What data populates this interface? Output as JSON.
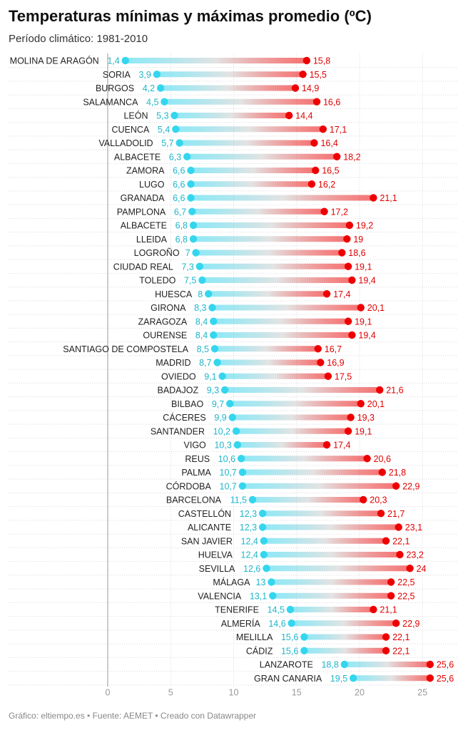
{
  "title": "Temperaturas mínimas y máximas promedio (ºC)",
  "subtitle": "Período climático: 1981-2010",
  "footer": "Gráfico: eltiempo.es • Fuente: AEMET • Creado con Datawrapper",
  "colors": {
    "min": "#34d6ee",
    "max": "#ee0000",
    "min_label": "#1fb6c9",
    "max_label": "#e00000",
    "grid": "#d9d9d9",
    "axis": "#999999"
  },
  "chart_data": {
    "type": "range-dot",
    "title": "Temperaturas mínimas y máximas promedio (ºC)",
    "subtitle": "Período climático: 1981-2010",
    "xlim": [
      0,
      27
    ],
    "xticks": [
      0,
      5,
      10,
      15,
      20,
      25
    ],
    "grid": true,
    "categories": [
      "MOLINA DE ARAGÓN",
      "SORIA",
      "BURGOS",
      "SALAMANCA",
      "LEÓN",
      "CUENCA",
      "VALLADOLID",
      "ALBACETE",
      "ZAMORA",
      "LUGO",
      "GRANADA",
      "PAMPLONA",
      "ALBACETE",
      "LLEIDA",
      "LOGROÑO",
      "CIUDAD REAL",
      "TOLEDO",
      "HUESCA",
      "GIRONA",
      "ZARAGOZA",
      "OURENSE",
      "SANTIAGO DE COMPOSTELA",
      "MADRID",
      "OVIEDO",
      "BADAJOZ",
      "BILBAO",
      "CÁCERES",
      "SANTANDER",
      "VIGO",
      "REUS",
      "PALMA",
      "CÓRDOBA",
      "BARCELONA",
      "CASTELLÓN",
      "ALICANTE",
      "SAN JAVIER",
      "HUELVA",
      "SEVILLA",
      "MÁLAGA",
      "VALENCIA",
      "TENERIFE",
      "ALMERÍA",
      "MELILLA",
      "CÁDIZ",
      "LANZAROTE",
      "GRAN CANARIA"
    ],
    "min_values": [
      1.4,
      3.9,
      4.2,
      4.5,
      5.3,
      5.4,
      5.7,
      6.3,
      6.6,
      6.6,
      6.6,
      6.7,
      6.8,
      6.8,
      7,
      7.3,
      7.5,
      8,
      8.3,
      8.4,
      8.4,
      8.5,
      8.7,
      9.1,
      9.3,
      9.7,
      9.9,
      10.2,
      10.3,
      10.6,
      10.7,
      10.7,
      11.5,
      12.3,
      12.3,
      12.4,
      12.4,
      12.6,
      13,
      13.1,
      14.5,
      14.6,
      15.6,
      15.6,
      18.8,
      19.5
    ],
    "max_values": [
      15.8,
      15.5,
      14.9,
      16.6,
      14.4,
      17.1,
      16.4,
      18.2,
      16.5,
      16.2,
      21.1,
      17.2,
      19.2,
      19,
      18.6,
      19.1,
      19.4,
      17.4,
      20.1,
      19.1,
      19.4,
      16.7,
      16.9,
      17.5,
      21.6,
      20.1,
      19.3,
      19.1,
      17.4,
      20.6,
      21.8,
      22.9,
      20.3,
      21.7,
      23.1,
      22.1,
      23.2,
      24,
      22.5,
      22.5,
      21.1,
      22.9,
      22.1,
      22.1,
      25.6,
      25.6
    ],
    "min_labels": [
      "1,4",
      "3,9",
      "4,2",
      "4,5",
      "5,3",
      "5,4",
      "5,7",
      "6,3",
      "6,6",
      "6,6",
      "6,6",
      "6,7",
      "6,8",
      "6,8",
      "7",
      "7,3",
      "7,5",
      "8",
      "8,3",
      "8,4",
      "8,4",
      "8,5",
      "8,7",
      "9,1",
      "9,3",
      "9,7",
      "9,9",
      "10,2",
      "10,3",
      "10,6",
      "10,7",
      "10,7",
      "11,5",
      "12,3",
      "12,3",
      "12,4",
      "12,4",
      "12,6",
      "13",
      "13,1",
      "14,5",
      "14,6",
      "15,6",
      "15,6",
      "18,8",
      "19,5"
    ],
    "max_labels": [
      "15,8",
      "15,5",
      "14,9",
      "16,6",
      "14,4",
      "17,1",
      "16,4",
      "18,2",
      "16,5",
      "16,2",
      "21,1",
      "17,2",
      "19,2",
      "19",
      "18,6",
      "19,1",
      "19,4",
      "17,4",
      "20,1",
      "19,1",
      "19,4",
      "16,7",
      "16,9",
      "17,5",
      "21,6",
      "20,1",
      "19,3",
      "19,1",
      "17,4",
      "20,6",
      "21,8",
      "22,9",
      "20,3",
      "21,7",
      "23,1",
      "22,1",
      "23,2",
      "24",
      "22,5",
      "22,5",
      "21,1",
      "22,9",
      "22,1",
      "22,1",
      "25,6",
      "25,6"
    ]
  }
}
